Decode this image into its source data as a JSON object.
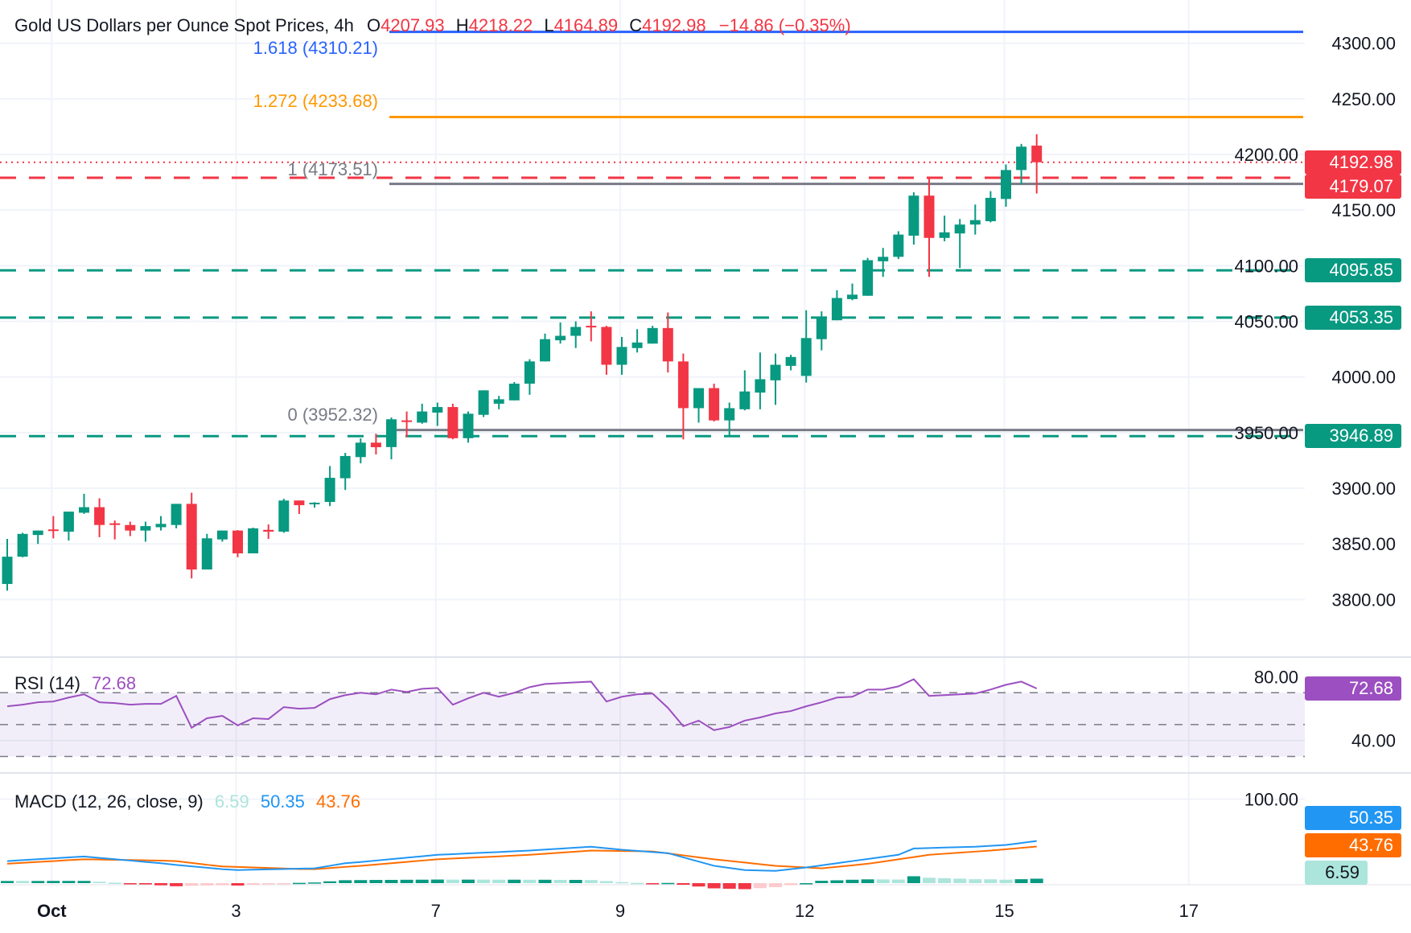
{
  "header": {
    "symbol_title": "Gold US Dollars per Ounce Spot Prices, 4h",
    "o_label": "O",
    "o_value": "4207.93",
    "h_label": "H",
    "h_value": "4218.22",
    "l_label": "L",
    "l_value": "4164.89",
    "c_label": "C",
    "c_value": "4192.98",
    "change": "−14.86 (−0.35%)"
  },
  "fib_labels": {
    "f1618": "1.618 (4310.21)",
    "f1272": "1.272 (4233.68)",
    "f1": "1 (4173.51)",
    "f0": "0 (3952.32)"
  },
  "badges": {
    "last_price": "4192.98",
    "red_level": "4179.07",
    "green_1": "4095.85",
    "green_2": "4053.35",
    "green_3": "3946.89",
    "rsi": "72.68",
    "macd": "50.35",
    "signal": "43.76",
    "hist": "6.59"
  },
  "rsi_legend": {
    "label": "RSI (14)",
    "value": "72.68"
  },
  "macd_legend": {
    "label": "MACD (12, 26, close, 9)",
    "hist": "6.59",
    "macd": "50.35",
    "signal": "43.76"
  },
  "colors": {
    "up": "#089981",
    "down": "#f23645",
    "fib_1618": "#2962ff",
    "fib_1272": "#ff9800",
    "fib_gray": "#787b86",
    "rsi": "#9c4fc0",
    "macd": "#2196f3",
    "signal": "#ff6d00",
    "hist_up_strong": "#089981",
    "hist_up_weak": "#ace5dc",
    "hist_down_strong": "#f23645",
    "hist_down_weak": "#fccbcd"
  },
  "chart_data": {
    "type": "candlestick",
    "title": "Gold US Dollars per Ounce Spot Prices, 4h",
    "ylim": [
      3770,
      4310
    ],
    "y_ticks": [
      "3800.00",
      "3850.00",
      "3900.00",
      "3950.00",
      "4000.00",
      "4050.00",
      "4100.00",
      "4150.00",
      "4200.00",
      "4250.00",
      "4300.00"
    ],
    "x_ticks": [
      {
        "label": "Oct",
        "bar": 3
      },
      {
        "label": "3",
        "bar": 15
      },
      {
        "label": "7",
        "bar": 28
      },
      {
        "label": "9",
        "bar": 40
      },
      {
        "label": "12",
        "bar": 52
      },
      {
        "label": "15",
        "bar": 65
      },
      {
        "label": "17",
        "bar": 77
      }
    ],
    "ohlc": [
      [
        3814,
        3854.5,
        3808,
        3838.5
      ],
      [
        3838.5,
        3860,
        3838,
        3859
      ],
      [
        3858,
        3862,
        3850,
        3862
      ],
      [
        3863,
        3875,
        3855,
        3862
      ],
      [
        3861,
        3879,
        3853,
        3879
      ],
      [
        3878,
        3895,
        3877,
        3883
      ],
      [
        3883,
        3891,
        3856,
        3867
      ],
      [
        3868.5,
        3871,
        3854,
        3868
      ],
      [
        3867,
        3870,
        3857,
        3862
      ],
      [
        3862,
        3870,
        3852,
        3866
      ],
      [
        3865,
        3875,
        3862,
        3868
      ],
      [
        3867,
        3886,
        3864,
        3886
      ],
      [
        3886,
        3896,
        3819,
        3827
      ],
      [
        3827,
        3859,
        3827,
        3855
      ],
      [
        3854,
        3862,
        3852,
        3862
      ],
      [
        3862,
        3862.4,
        3838,
        3841.5
      ],
      [
        3841.5,
        3864.6,
        3841.5,
        3864
      ],
      [
        3862.6,
        3867.5,
        3854.5,
        3861
      ],
      [
        3861,
        3890.6,
        3860,
        3889
      ],
      [
        3889,
        3889,
        3876.9,
        3884.8
      ],
      [
        3886,
        3887.5,
        3882.6,
        3887
      ],
      [
        3887.7,
        3920,
        3884,
        3909.4
      ],
      [
        3909,
        3931.8,
        3898.5,
        3929
      ],
      [
        3928,
        3944.8,
        3922.4,
        3941
      ],
      [
        3941,
        3949,
        3930.4,
        3936.9
      ],
      [
        3937,
        3963.6,
        3926,
        3962
      ],
      [
        3961,
        3969,
        3946,
        3960
      ],
      [
        3959,
        3976,
        3958,
        3969
      ],
      [
        3968,
        3977,
        3956,
        3973
      ],
      [
        3973,
        3976,
        3944,
        3945
      ],
      [
        3945,
        3969,
        3941,
        3967
      ],
      [
        3966,
        3988,
        3964,
        3988
      ],
      [
        3976,
        3983,
        3971,
        3980
      ],
      [
        3979,
        3995.5,
        3979,
        3994
      ],
      [
        3994,
        4016,
        3984,
        4014
      ],
      [
        4014,
        4039,
        4014,
        4034
      ],
      [
        4033,
        4049,
        4030,
        4037
      ],
      [
        4037,
        4050,
        4026,
        4045
      ],
      [
        4046,
        4059,
        4032,
        4045
      ],
      [
        4045,
        4046,
        4002,
        4011
      ],
      [
        4011,
        4036,
        4002,
        4027
      ],
      [
        4026,
        4043,
        4022,
        4031
      ],
      [
        4030,
        4046,
        4030,
        4044
      ],
      [
        4044,
        4058,
        4004,
        4014
      ],
      [
        4014,
        4021,
        3944,
        3972
      ],
      [
        3972,
        3990,
        3959,
        3990
      ],
      [
        3990,
        3994,
        3960,
        3961
      ],
      [
        3961,
        3977,
        3947,
        3972
      ],
      [
        3971,
        4006,
        3970,
        3987
      ],
      [
        3986,
        4022,
        3971,
        3998
      ],
      [
        3997,
        4021,
        3975,
        4011
      ],
      [
        4010,
        4020,
        4006,
        4018
      ],
      [
        4001,
        4060,
        3995,
        4035
      ],
      [
        4034,
        4059,
        4024,
        4054
      ],
      [
        4051,
        4078,
        4051,
        4071
      ],
      [
        4070,
        4084,
        4069,
        4074
      ],
      [
        4073,
        4107,
        4073,
        4105
      ],
      [
        4104,
        4116,
        4090,
        4108
      ],
      [
        4108,
        4131,
        4106,
        4128
      ],
      [
        4127,
        4166,
        4119,
        4163
      ],
      [
        4163,
        4178,
        4090,
        4125
      ],
      [
        4125,
        4145,
        4122,
        4130
      ],
      [
        4129,
        4142,
        4098,
        4137
      ],
      [
        4137,
        4155,
        4128,
        4141
      ],
      [
        4140,
        4167,
        4139,
        4161
      ],
      [
        4160,
        4191,
        4153,
        4186
      ],
      [
        4186,
        4209.5,
        4173,
        4207
      ],
      [
        4207.93,
        4218.22,
        4164.89,
        4192.98
      ]
    ],
    "levels": [
      {
        "name": "fib-1618",
        "price": 4310.21,
        "style": "solid",
        "color": "#2962ff",
        "from_bar": 25
      },
      {
        "name": "fib-1272",
        "price": 4233.68,
        "style": "solid",
        "color": "#ff9800",
        "from_bar": 25
      },
      {
        "name": "fib-1",
        "price": 4173.51,
        "style": "solid",
        "color": "#787b86",
        "from_bar": 25
      },
      {
        "name": "fib-0",
        "price": 3952.32,
        "style": "solid",
        "color": "#787b86",
        "from_bar": 25
      },
      {
        "name": "last-price-line",
        "price": 4192.98,
        "style": "dotted",
        "color": "#f23645",
        "from_bar": 0
      },
      {
        "name": "resistance-4179",
        "price": 4179.07,
        "style": "dashed",
        "color": "#f23645",
        "from_bar": 0
      },
      {
        "name": "support-4095",
        "price": 4095.85,
        "style": "dashed",
        "color": "#089981",
        "from_bar": 0
      },
      {
        "name": "support-4053",
        "price": 4053.35,
        "style": "dashed",
        "color": "#089981",
        "from_bar": 0
      },
      {
        "name": "support-3946",
        "price": 3946.89,
        "style": "dashed",
        "color": "#089981",
        "from_bar": 0
      }
    ],
    "rsi": {
      "period": 14,
      "ylim": [
        25,
        85
      ],
      "band": [
        30,
        70
      ],
      "mid": 50,
      "y_ticks": [
        "40.00",
        "80.00"
      ],
      "values": [
        61.5,
        62.5,
        64,
        64.5,
        67,
        69,
        64,
        63.5,
        62.5,
        63,
        63,
        68,
        48,
        54,
        55.5,
        49.5,
        54,
        53.5,
        61,
        60,
        60.5,
        66,
        68.5,
        70,
        69,
        72,
        70.5,
        72.5,
        73,
        62.5,
        66.5,
        70,
        67.5,
        70,
        73.5,
        75.5,
        76,
        76.5,
        77,
        64.5,
        67.5,
        69,
        69.5,
        60.5,
        49,
        52.5,
        46.5,
        48.5,
        52.5,
        54.5,
        57,
        58.5,
        61.5,
        64,
        67,
        67.5,
        72,
        72,
        74,
        78.5,
        68,
        68.5,
        69,
        69.5,
        72,
        75,
        77,
        72.68
      ]
    },
    "macd": {
      "params": [
        12,
        26,
        9
      ],
      "ylim": [
        -10,
        120
      ],
      "y_ticks": [
        "100.00"
      ],
      "macd": [
        26.6,
        27.7,
        28.8,
        29.9,
        31,
        32,
        30.4,
        28.8,
        27.2,
        25.6,
        24,
        22,
        20.4,
        18.7,
        17,
        16,
        16.4,
        16.8,
        17.2,
        17.6,
        18,
        21,
        24,
        25.5,
        27.2,
        28.9,
        30.6,
        32.3,
        34,
        34.8,
        35.7,
        36.5,
        37.3,
        38.2,
        39,
        40.2,
        41.3,
        42.5,
        43.6,
        41.8,
        40,
        38.7,
        37.3,
        36,
        31,
        26,
        21,
        18.5,
        16,
        15.5,
        15,
        17,
        19,
        21.5,
        24,
        26.6,
        29,
        31.5,
        34,
        41.5,
        42,
        42.6,
        43.1,
        43.6,
        44.6,
        45.7,
        48,
        50.35
      ],
      "signal": [
        23.4,
        24.5,
        25.6,
        26.6,
        27.7,
        28.7,
        28.4,
        28.1,
        27.8,
        27.5,
        27.2,
        26.6,
        24.4,
        22.2,
        20.2,
        19.6,
        19,
        18.4,
        17.8,
        17.2,
        17,
        18.3,
        19.7,
        21,
        22.5,
        24.1,
        25.6,
        27.2,
        28.7,
        29.6,
        30.5,
        31.3,
        32.2,
        33.1,
        34,
        35.2,
        36.5,
        37.7,
        39,
        38.8,
        38.5,
        38.3,
        38,
        35.7,
        33.4,
        31,
        28.7,
        26.8,
        24.9,
        22.9,
        21,
        20,
        19,
        18,
        19.8,
        21.6,
        23.4,
        26,
        28.7,
        31.3,
        34,
        35.3,
        36.5,
        37.8,
        39,
        40.6,
        42.2,
        43.76
      ]
    }
  }
}
